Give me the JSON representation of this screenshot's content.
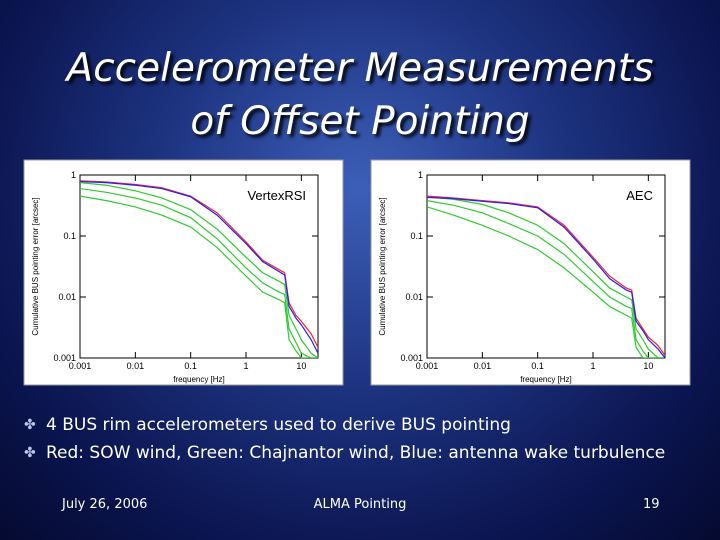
{
  "slide": {
    "title_lines": [
      "Accelerometer Measurements",
      "of Offset Pointing"
    ],
    "bullets": [
      "4 BUS rim accelerometers used to derive BUS pointing",
      "Red: SOW wind, Green: Chajnantor wind, Blue: antenna wake turbulence"
    ],
    "footer": {
      "date": "July 26, 2006",
      "center": "ALMA Pointing",
      "page": "19"
    }
  },
  "chart_data": [
    {
      "type": "line",
      "annotation": "VertexRSI",
      "x_label": "frequency [Hz]",
      "y_label": "Cumulative BUS pointing error [arcsec]",
      "xlog": true,
      "ylog": true,
      "xlim": [
        0.001,
        20
      ],
      "ylim": [
        0.001,
        1
      ],
      "xticks": [
        0.001,
        0.01,
        0.1,
        1,
        10
      ],
      "yticks": [
        0.001,
        0.01,
        0.1,
        1
      ],
      "x": [
        0.001,
        0.003,
        0.01,
        0.03,
        0.1,
        0.3,
        1,
        2,
        4,
        5,
        6,
        8,
        10,
        15,
        20
      ],
      "series": [
        {
          "color": "#2ecc2e",
          "values": [
            0.45,
            0.38,
            0.3,
            0.22,
            0.14,
            0.065,
            0.022,
            0.012,
            0.009,
            0.008,
            0.002,
            0.0013,
            0.001,
            0.001,
            0.001
          ]
        },
        {
          "color": "#2ecc2e",
          "values": [
            0.6,
            0.52,
            0.42,
            0.32,
            0.2,
            0.09,
            0.03,
            0.017,
            0.012,
            0.011,
            0.003,
            0.0018,
            0.0012,
            0.001,
            0.001
          ]
        },
        {
          "color": "#2ecc2e",
          "values": [
            0.75,
            0.68,
            0.55,
            0.42,
            0.27,
            0.13,
            0.045,
            0.025,
            0.018,
            0.016,
            0.005,
            0.003,
            0.002,
            0.0012,
            0.001
          ]
        },
        {
          "color": "#ff2020",
          "values": [
            0.8,
            0.77,
            0.7,
            0.62,
            0.45,
            0.24,
            0.08,
            0.04,
            0.028,
            0.025,
            0.008,
            0.005,
            0.004,
            0.0025,
            0.0015
          ]
        },
        {
          "color": "#2020ff",
          "values": [
            0.78,
            0.75,
            0.68,
            0.6,
            0.44,
            0.22,
            0.075,
            0.038,
            0.026,
            0.023,
            0.007,
            0.0045,
            0.0035,
            0.002,
            0.0012
          ]
        }
      ]
    },
    {
      "type": "line",
      "annotation": "AEC",
      "x_label": "frequency [Hz]",
      "y_label": "Cumulative BUS pointing error [arcsec]",
      "xlog": true,
      "ylog": true,
      "xlim": [
        0.001,
        20
      ],
      "ylim": [
        0.001,
        1
      ],
      "xticks": [
        0.001,
        0.01,
        0.1,
        1,
        10
      ],
      "yticks": [
        0.001,
        0.01,
        0.1,
        1
      ],
      "x": [
        0.001,
        0.003,
        0.01,
        0.03,
        0.1,
        0.3,
        1,
        2,
        4,
        5,
        6,
        8,
        10,
        15,
        20
      ],
      "series": [
        {
          "color": "#2ecc2e",
          "values": [
            0.3,
            0.22,
            0.15,
            0.1,
            0.06,
            0.03,
            0.012,
            0.007,
            0.005,
            0.0045,
            0.0015,
            0.001,
            0.001,
            0.001,
            0.001
          ]
        },
        {
          "color": "#2ecc2e",
          "values": [
            0.38,
            0.32,
            0.24,
            0.16,
            0.1,
            0.05,
            0.018,
            0.01,
            0.007,
            0.0065,
            0.002,
            0.0013,
            0.001,
            0.001,
            0.001
          ]
        },
        {
          "color": "#2ecc2e",
          "values": [
            0.44,
            0.4,
            0.33,
            0.24,
            0.15,
            0.075,
            0.026,
            0.014,
            0.01,
            0.009,
            0.003,
            0.002,
            0.0014,
            0.001,
            0.001
          ]
        },
        {
          "color": "#ff2020",
          "values": [
            0.45,
            0.42,
            0.38,
            0.35,
            0.3,
            0.15,
            0.045,
            0.022,
            0.014,
            0.013,
            0.0045,
            0.003,
            0.0022,
            0.0016,
            0.0011
          ]
        },
        {
          "color": "#2020ff",
          "values": [
            0.43,
            0.41,
            0.37,
            0.34,
            0.29,
            0.14,
            0.042,
            0.02,
            0.013,
            0.012,
            0.004,
            0.0028,
            0.002,
            0.0014,
            0.001
          ]
        }
      ]
    }
  ]
}
